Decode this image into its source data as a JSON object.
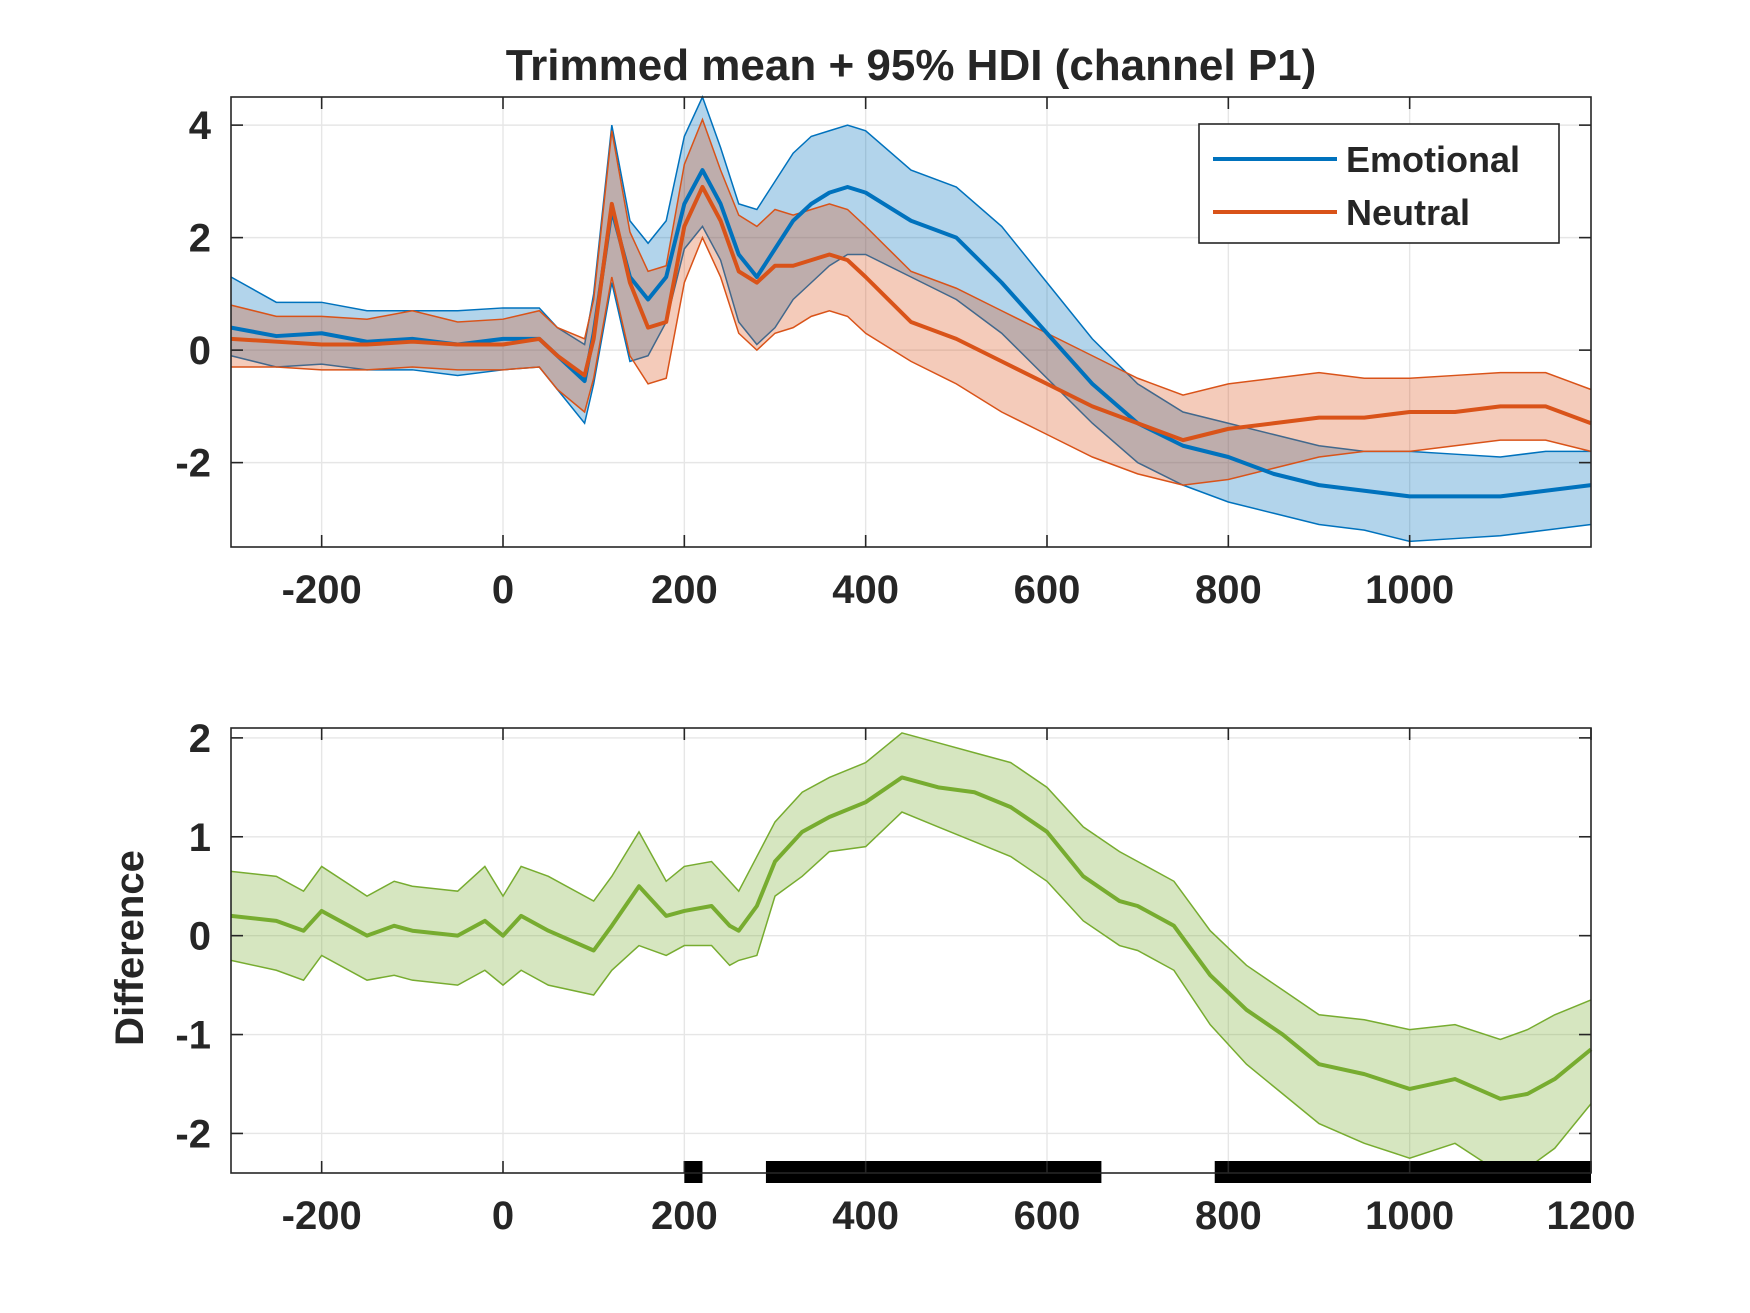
{
  "chart_data": [
    {
      "type": "line",
      "title": "Trimmed mean + 95% HDI (channel P1)",
      "xlabel": "",
      "ylabel": "",
      "xlim": [
        -300,
        1200
      ],
      "ylim": [
        -3.5,
        4.5
      ],
      "xticks": [
        -200,
        0,
        200,
        400,
        600,
        800,
        1000
      ],
      "yticks": [
        4,
        2,
        0,
        -2
      ],
      "x_tick_labels": [
        "-200",
        "0",
        "200",
        "400",
        "600",
        "800",
        "1000"
      ],
      "y_tick_labels": [
        "4",
        "2",
        "0",
        "-2"
      ],
      "grid": true,
      "legend": {
        "placement": "top-right",
        "entries": [
          "Emotional",
          "Neutral"
        ]
      },
      "series": [
        {
          "name": "Emotional",
          "color": "#0072BD",
          "fill": "#0072BD",
          "x": [
            -300,
            -250,
            -200,
            -150,
            -100,
            -50,
            0,
            40,
            60,
            90,
            100,
            120,
            140,
            160,
            180,
            200,
            220,
            240,
            260,
            280,
            300,
            320,
            340,
            360,
            380,
            400,
            450,
            500,
            550,
            600,
            650,
            700,
            750,
            800,
            850,
            900,
            950,
            1000,
            1050,
            1100,
            1150,
            1200
          ],
          "mean": [
            0.4,
            0.25,
            0.3,
            0.15,
            0.2,
            0.1,
            0.2,
            0.2,
            -0.1,
            -0.55,
            0.3,
            2.5,
            1.3,
            0.9,
            1.3,
            2.6,
            3.2,
            2.6,
            1.7,
            1.3,
            1.8,
            2.3,
            2.6,
            2.8,
            2.9,
            2.8,
            2.3,
            2.0,
            1.2,
            0.3,
            -0.6,
            -1.3,
            -1.7,
            -1.9,
            -2.2,
            -2.4,
            -2.5,
            -2.6,
            -2.6,
            -2.6,
            -2.5,
            -2.4
          ],
          "lower": [
            -0.1,
            -0.3,
            -0.25,
            -0.35,
            -0.35,
            -0.45,
            -0.35,
            -0.3,
            -0.7,
            -1.3,
            -0.6,
            1.2,
            -0.2,
            -0.1,
            0.5,
            1.8,
            2.2,
            1.6,
            0.5,
            0.1,
            0.4,
            0.9,
            1.2,
            1.5,
            1.7,
            1.7,
            1.3,
            0.9,
            0.3,
            -0.5,
            -1.3,
            -2.0,
            -2.4,
            -2.7,
            -2.9,
            -3.1,
            -3.2,
            -3.4,
            -3.35,
            -3.3,
            -3.2,
            -3.1
          ],
          "upper": [
            1.3,
            0.85,
            0.85,
            0.7,
            0.7,
            0.7,
            0.75,
            0.75,
            0.4,
            0.1,
            1.0,
            4.0,
            2.3,
            1.9,
            2.3,
            3.8,
            4.5,
            3.6,
            2.6,
            2.5,
            3.0,
            3.5,
            3.8,
            3.9,
            4.0,
            3.9,
            3.2,
            2.9,
            2.2,
            1.2,
            0.2,
            -0.6,
            -1.1,
            -1.3,
            -1.5,
            -1.7,
            -1.8,
            -1.8,
            -1.85,
            -1.9,
            -1.8,
            -1.8
          ]
        },
        {
          "name": "Neutral",
          "color": "#D95319",
          "fill": "#D95319",
          "x": [
            -300,
            -250,
            -200,
            -150,
            -100,
            -50,
            0,
            40,
            60,
            90,
            100,
            120,
            140,
            160,
            180,
            200,
            220,
            240,
            260,
            280,
            300,
            320,
            340,
            360,
            380,
            400,
            450,
            500,
            550,
            600,
            650,
            700,
            750,
            800,
            850,
            900,
            950,
            1000,
            1050,
            1100,
            1150,
            1200
          ],
          "mean": [
            0.2,
            0.15,
            0.1,
            0.1,
            0.15,
            0.1,
            0.1,
            0.2,
            -0.1,
            -0.45,
            0.2,
            2.6,
            1.2,
            0.4,
            0.5,
            2.2,
            2.9,
            2.3,
            1.4,
            1.2,
            1.5,
            1.5,
            1.6,
            1.7,
            1.6,
            1.3,
            0.5,
            0.2,
            -0.2,
            -0.6,
            -1.0,
            -1.3,
            -1.6,
            -1.4,
            -1.3,
            -1.2,
            -1.2,
            -1.1,
            -1.1,
            -1.0,
            -1.0,
            -1.3
          ],
          "lower": [
            -0.3,
            -0.3,
            -0.35,
            -0.35,
            -0.3,
            -0.35,
            -0.35,
            -0.3,
            -0.7,
            -1.1,
            -0.5,
            1.3,
            -0.1,
            -0.6,
            -0.5,
            1.2,
            2.0,
            1.3,
            0.3,
            0.0,
            0.3,
            0.4,
            0.6,
            0.7,
            0.6,
            0.3,
            -0.2,
            -0.6,
            -1.1,
            -1.5,
            -1.9,
            -2.2,
            -2.4,
            -2.3,
            -2.1,
            -1.9,
            -1.8,
            -1.8,
            -1.7,
            -1.6,
            -1.6,
            -1.8
          ],
          "upper": [
            0.8,
            0.6,
            0.6,
            0.55,
            0.7,
            0.5,
            0.55,
            0.7,
            0.4,
            0.2,
            0.9,
            3.9,
            2.1,
            1.4,
            1.5,
            3.3,
            4.1,
            3.2,
            2.4,
            2.2,
            2.5,
            2.4,
            2.5,
            2.6,
            2.5,
            2.2,
            1.4,
            1.1,
            0.7,
            0.3,
            -0.1,
            -0.5,
            -0.8,
            -0.6,
            -0.5,
            -0.4,
            -0.5,
            -0.5,
            -0.45,
            -0.4,
            -0.4,
            -0.7
          ]
        }
      ]
    },
    {
      "type": "line",
      "title": "",
      "xlabel": "",
      "ylabel": "Difference",
      "xlim": [
        -300,
        1200
      ],
      "ylim": [
        -2.4,
        2.1
      ],
      "xticks": [
        -200,
        0,
        200,
        400,
        600,
        800,
        1000,
        1200
      ],
      "yticks": [
        2,
        1,
        0,
        -1,
        -2
      ],
      "x_tick_labels": [
        "-200",
        "0",
        "200",
        "400",
        "600",
        "800",
        "1000",
        "1200"
      ],
      "y_tick_labels": [
        "2",
        "1",
        "0",
        "-1",
        "-2"
      ],
      "grid": true,
      "series": [
        {
          "color": "#77AC30",
          "fill": "#77AC30",
          "x": [
            -300,
            -250,
            -220,
            -200,
            -150,
            -120,
            -100,
            -50,
            -20,
            0,
            20,
            50,
            100,
            120,
            150,
            180,
            200,
            230,
            250,
            260,
            280,
            300,
            330,
            360,
            400,
            440,
            480,
            520,
            560,
            600,
            640,
            680,
            700,
            740,
            780,
            820,
            860,
            900,
            950,
            1000,
            1050,
            1100,
            1130,
            1160,
            1200
          ],
          "mean": [
            0.2,
            0.15,
            0.05,
            0.25,
            0.0,
            0.1,
            0.05,
            0.0,
            0.15,
            0.0,
            0.2,
            0.05,
            -0.15,
            0.1,
            0.5,
            0.2,
            0.25,
            0.3,
            0.1,
            0.05,
            0.3,
            0.75,
            1.05,
            1.2,
            1.35,
            1.6,
            1.5,
            1.45,
            1.3,
            1.05,
            0.6,
            0.35,
            0.3,
            0.1,
            -0.4,
            -0.75,
            -1.0,
            -1.3,
            -1.4,
            -1.55,
            -1.45,
            -1.65,
            -1.6,
            -1.45,
            -1.15
          ],
          "lower": [
            -0.25,
            -0.35,
            -0.45,
            -0.2,
            -0.45,
            -0.4,
            -0.45,
            -0.5,
            -0.35,
            -0.5,
            -0.35,
            -0.5,
            -0.6,
            -0.35,
            -0.1,
            -0.2,
            -0.1,
            -0.1,
            -0.3,
            -0.25,
            -0.2,
            0.4,
            0.6,
            0.85,
            0.9,
            1.25,
            1.1,
            0.95,
            0.8,
            0.55,
            0.15,
            -0.1,
            -0.15,
            -0.35,
            -0.9,
            -1.3,
            -1.6,
            -1.9,
            -2.1,
            -2.25,
            -2.1,
            -2.4,
            -2.35,
            -2.15,
            -1.7
          ],
          "upper": [
            0.65,
            0.6,
            0.45,
            0.7,
            0.4,
            0.55,
            0.5,
            0.45,
            0.7,
            0.4,
            0.7,
            0.6,
            0.35,
            0.6,
            1.05,
            0.55,
            0.7,
            0.75,
            0.55,
            0.45,
            0.8,
            1.15,
            1.45,
            1.6,
            1.75,
            2.05,
            1.95,
            1.85,
            1.75,
            1.5,
            1.1,
            0.85,
            0.75,
            0.55,
            0.05,
            -0.3,
            -0.55,
            -0.8,
            -0.85,
            -0.95,
            -0.9,
            -1.05,
            -0.95,
            -0.8,
            -0.65
          ]
        }
      ],
      "significance_bars": [
        [
          200,
          220
        ],
        [
          290,
          660
        ],
        [
          785,
          1200
        ]
      ]
    }
  ]
}
